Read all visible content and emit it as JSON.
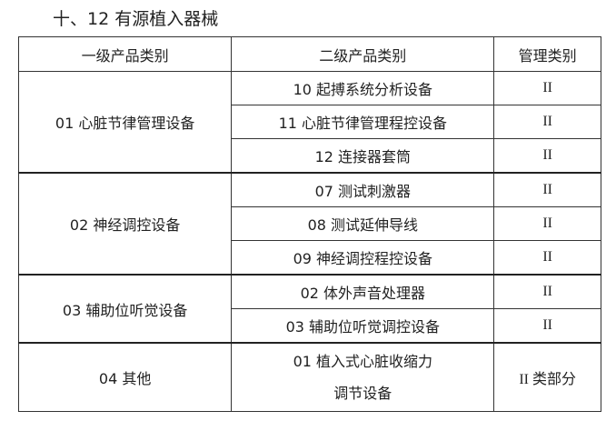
{
  "title": "十、12 有源植入器械",
  "headers": [
    "一级产品类别",
    "二级产品类别",
    "管理类别"
  ],
  "groups": [
    {
      "name": "01 心脏节律管理设备",
      "items": [
        {
          "name": "10 起搏系统分析设备",
          "class": "II"
        },
        {
          "name": "11 心脏节律管理程控设备",
          "class": "II"
        },
        {
          "name": "12 连接器套筒",
          "class": "II"
        }
      ]
    },
    {
      "name": "02 神经调控设备",
      "items": [
        {
          "name": "07 测试刺激器",
          "class": "II"
        },
        {
          "name": "08 测试延伸导线",
          "class": "II"
        },
        {
          "name": "09 神经调控程控设备",
          "class": "II"
        }
      ]
    },
    {
      "name": "03 辅助位听觉设备",
      "items": [
        {
          "name": "02 体外声音处理器",
          "class": "II"
        },
        {
          "name": "03 辅助位听觉调控设备",
          "class": "II"
        }
      ]
    },
    {
      "name": "04 其他",
      "items": [
        {
          "name_line1": "01 植入式心脏收缩力",
          "name_line2": "调节设备",
          "class": "II 类部分"
        }
      ]
    }
  ]
}
